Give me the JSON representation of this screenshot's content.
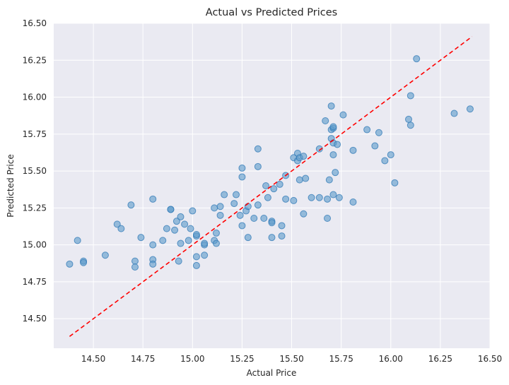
{
  "chart_data": {
    "type": "scatter",
    "title": "Actual vs Predicted Prices",
    "xlabel": "Actual Price",
    "ylabel": "Predicted Price",
    "xlim": [
      14.3,
      16.5
    ],
    "ylim": [
      14.3,
      16.5
    ],
    "x_ticks": [
      "14.50",
      "14.75",
      "15.00",
      "15.25",
      "15.50",
      "15.75",
      "16.00",
      "16.25",
      "16.50"
    ],
    "y_ticks": [
      "14.50",
      "14.75",
      "15.00",
      "15.25",
      "15.50",
      "15.75",
      "16.00",
      "16.25",
      "16.50"
    ],
    "grid": true,
    "colors": {
      "background": "#eaeaf2",
      "points": "#5a9ac9",
      "reference_line": "#ff0000"
    },
    "reference_line": {
      "style": "dashed",
      "from": [
        14.38,
        14.38
      ],
      "to": [
        16.41,
        16.41
      ]
    },
    "points": [
      [
        14.38,
        14.87
      ],
      [
        14.42,
        15.03
      ],
      [
        14.45,
        14.89
      ],
      [
        14.45,
        14.88
      ],
      [
        14.56,
        14.93
      ],
      [
        14.62,
        15.14
      ],
      [
        14.64,
        15.11
      ],
      [
        14.69,
        15.27
      ],
      [
        14.71,
        14.89
      ],
      [
        14.71,
        14.85
      ],
      [
        14.74,
        15.05
      ],
      [
        14.8,
        15.31
      ],
      [
        14.8,
        14.9
      ],
      [
        14.8,
        14.87
      ],
      [
        14.8,
        15.0
      ],
      [
        14.85,
        15.03
      ],
      [
        14.87,
        15.11
      ],
      [
        14.89,
        15.24
      ],
      [
        14.89,
        15.24
      ],
      [
        14.91,
        15.1
      ],
      [
        14.92,
        15.16
      ],
      [
        14.93,
        14.89
      ],
      [
        14.94,
        15.19
      ],
      [
        14.94,
        15.01
      ],
      [
        14.96,
        15.14
      ],
      [
        14.98,
        15.03
      ],
      [
        14.99,
        15.11
      ],
      [
        15.0,
        15.23
      ],
      [
        15.02,
        15.06
      ],
      [
        15.02,
        15.07
      ],
      [
        15.02,
        14.92
      ],
      [
        15.02,
        14.86
      ],
      [
        15.06,
        14.93
      ],
      [
        15.06,
        15.0
      ],
      [
        15.06,
        15.01
      ],
      [
        15.11,
        15.25
      ],
      [
        15.11,
        15.03
      ],
      [
        15.12,
        15.01
      ],
      [
        15.12,
        15.08
      ],
      [
        15.14,
        15.2
      ],
      [
        15.14,
        15.26
      ],
      [
        15.16,
        15.34
      ],
      [
        15.21,
        15.28
      ],
      [
        15.22,
        15.34
      ],
      [
        15.24,
        15.2
      ],
      [
        15.25,
        15.46
      ],
      [
        15.25,
        15.52
      ],
      [
        15.25,
        15.13
      ],
      [
        15.27,
        15.23
      ],
      [
        15.28,
        15.26
      ],
      [
        15.28,
        15.05
      ],
      [
        15.31,
        15.18
      ],
      [
        15.33,
        15.27
      ],
      [
        15.33,
        15.53
      ],
      [
        15.33,
        15.65
      ],
      [
        15.36,
        15.18
      ],
      [
        15.37,
        15.4
      ],
      [
        15.38,
        15.32
      ],
      [
        15.4,
        15.16
      ],
      [
        15.4,
        15.15
      ],
      [
        15.4,
        15.05
      ],
      [
        15.41,
        15.38
      ],
      [
        15.44,
        15.41
      ],
      [
        15.45,
        15.13
      ],
      [
        15.45,
        15.06
      ],
      [
        15.47,
        15.47
      ],
      [
        15.47,
        15.31
      ],
      [
        15.51,
        15.59
      ],
      [
        15.51,
        15.3
      ],
      [
        15.53,
        15.62
      ],
      [
        15.53,
        15.57
      ],
      [
        15.54,
        15.59
      ],
      [
        15.54,
        15.44
      ],
      [
        15.56,
        15.6
      ],
      [
        15.56,
        15.21
      ],
      [
        15.57,
        15.45
      ],
      [
        15.6,
        15.32
      ],
      [
        15.64,
        15.65
      ],
      [
        15.64,
        15.32
      ],
      [
        15.67,
        15.84
      ],
      [
        15.68,
        15.31
      ],
      [
        15.68,
        15.18
      ],
      [
        15.69,
        15.44
      ],
      [
        15.7,
        15.72
      ],
      [
        15.7,
        15.94
      ],
      [
        15.7,
        15.78
      ],
      [
        15.71,
        15.79
      ],
      [
        15.71,
        15.8
      ],
      [
        15.71,
        15.69
      ],
      [
        15.71,
        15.61
      ],
      [
        15.71,
        15.34
      ],
      [
        15.72,
        15.49
      ],
      [
        15.73,
        15.68
      ],
      [
        15.74,
        15.32
      ],
      [
        15.76,
        15.88
      ],
      [
        15.81,
        15.64
      ],
      [
        15.81,
        15.29
      ],
      [
        15.88,
        15.78
      ],
      [
        15.92,
        15.67
      ],
      [
        15.94,
        15.76
      ],
      [
        15.97,
        15.57
      ],
      [
        16.0,
        15.61
      ],
      [
        16.02,
        15.42
      ],
      [
        16.09,
        15.85
      ],
      [
        16.1,
        16.01
      ],
      [
        16.1,
        15.81
      ],
      [
        16.13,
        16.26
      ],
      [
        16.32,
        15.89
      ],
      [
        16.4,
        15.92
      ]
    ]
  }
}
